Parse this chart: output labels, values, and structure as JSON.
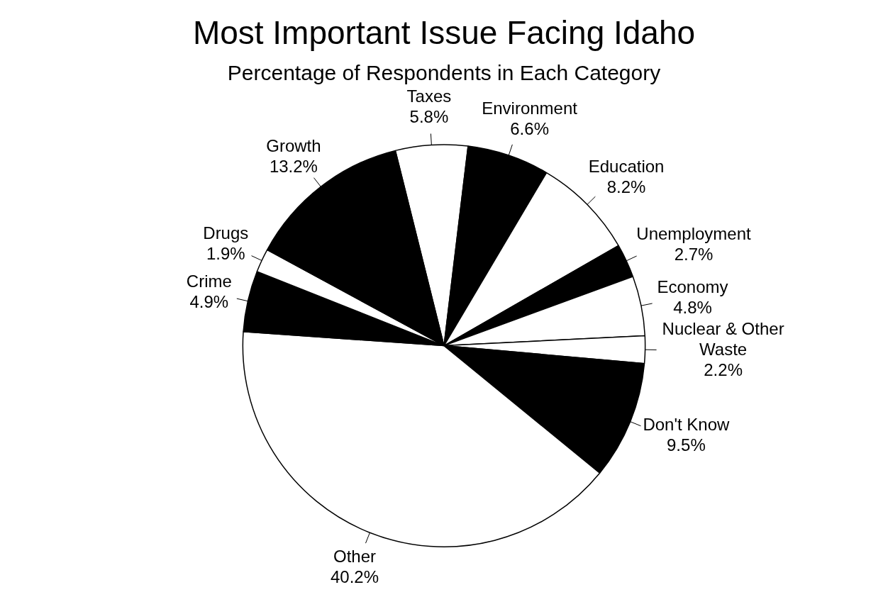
{
  "chart_data": {
    "type": "pie",
    "title": "Most Important Issue Facing Idaho",
    "subtitle": "Percentage of Respondents in Each Category",
    "categories": [
      "Taxes",
      "Environment",
      "Education",
      "Unemployment",
      "Economy",
      "Nuclear & Other Waste",
      "Don't Know",
      "Other",
      "Crime",
      "Drugs",
      "Growth"
    ],
    "values": [
      5.8,
      6.6,
      8.2,
      2.7,
      4.8,
      2.2,
      9.5,
      40.2,
      4.9,
      1.9,
      13.2
    ],
    "value_labels": [
      "5.8%",
      "6.6%",
      "8.2%",
      "2.7%",
      "4.8%",
      "2.2%",
      "9.5%",
      "40.2%",
      "4.9%",
      "1.9%",
      "13.2%"
    ],
    "colors": [
      "#ffffff",
      "#000000",
      "#ffffff",
      "#000000",
      "#ffffff",
      "#ffffff",
      "#000000",
      "#ffffff",
      "#000000",
      "#ffffff",
      "#000000"
    ],
    "legend": false
  }
}
